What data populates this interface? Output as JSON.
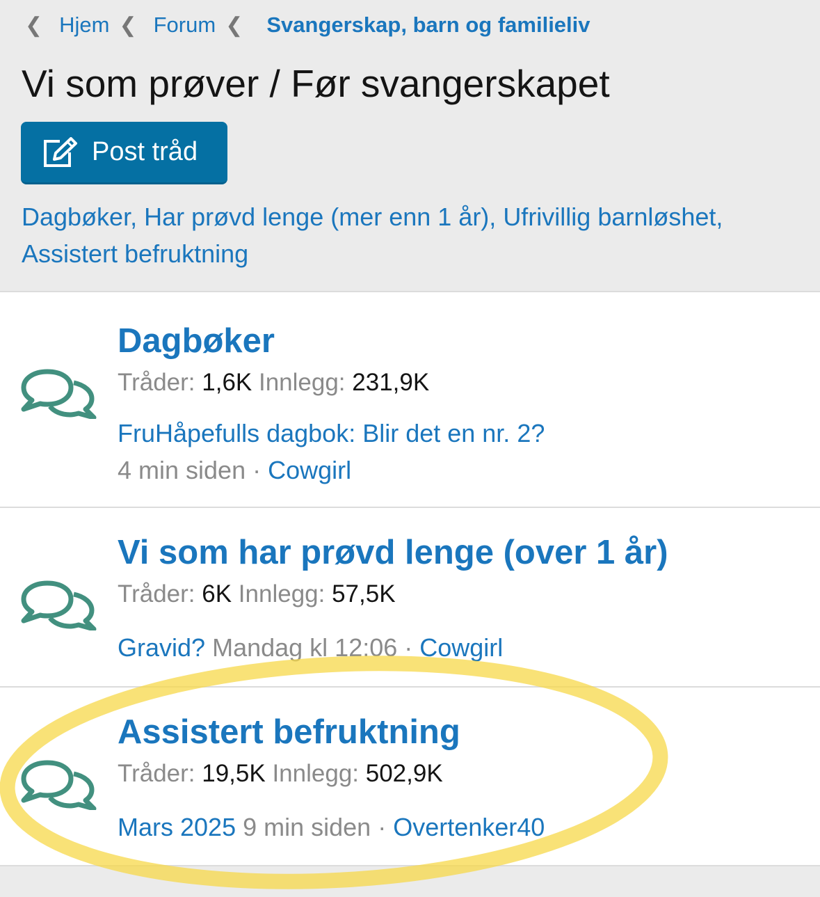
{
  "breadcrumb": [
    {
      "label": "Hjem"
    },
    {
      "label": "Forum"
    },
    {
      "label": "Svangerskap, barn og familieliv"
    }
  ],
  "page_title": "Vi som prøver / Før svangerskapet",
  "post_button": {
    "label": "Post tråd",
    "icon": "edit-icon"
  },
  "subforum_links": [
    "Dagbøker",
    ", ",
    "Har prøvd lenge (mer enn 1 år)",
    ", ",
    "Ufrivillig barnløshet",
    ",",
    "Assistert befruktning"
  ],
  "labels": {
    "threads": "Tråder:",
    "posts": "Innlegg:",
    "sep": " · "
  },
  "forums": [
    {
      "title": "Dagbøker",
      "threads": "1,6K",
      "posts": "231,9K",
      "last_title": "FruHåpefulls dagbok: Blir det en nr. 2?",
      "last_time": "4 min siden",
      "last_user": "Cowgirl"
    },
    {
      "title": "Vi som har prøvd lenge (over 1 år)",
      "threads": "6K",
      "posts": "57,5K",
      "last_title": "Gravid?",
      "last_time": "Mandag kl 12:06",
      "last_user": "Cowgirl"
    },
    {
      "title": "Assistert befruktning",
      "threads": "19,5K",
      "posts": "502,9K",
      "last_title": "Mars 2025",
      "last_time": "9 min siden",
      "last_user": "Overtenker40"
    }
  ],
  "colors": {
    "link": "#1a76bd",
    "button": "#0570a3",
    "icon": "#42907f",
    "highlight": "#f7d84a"
  }
}
